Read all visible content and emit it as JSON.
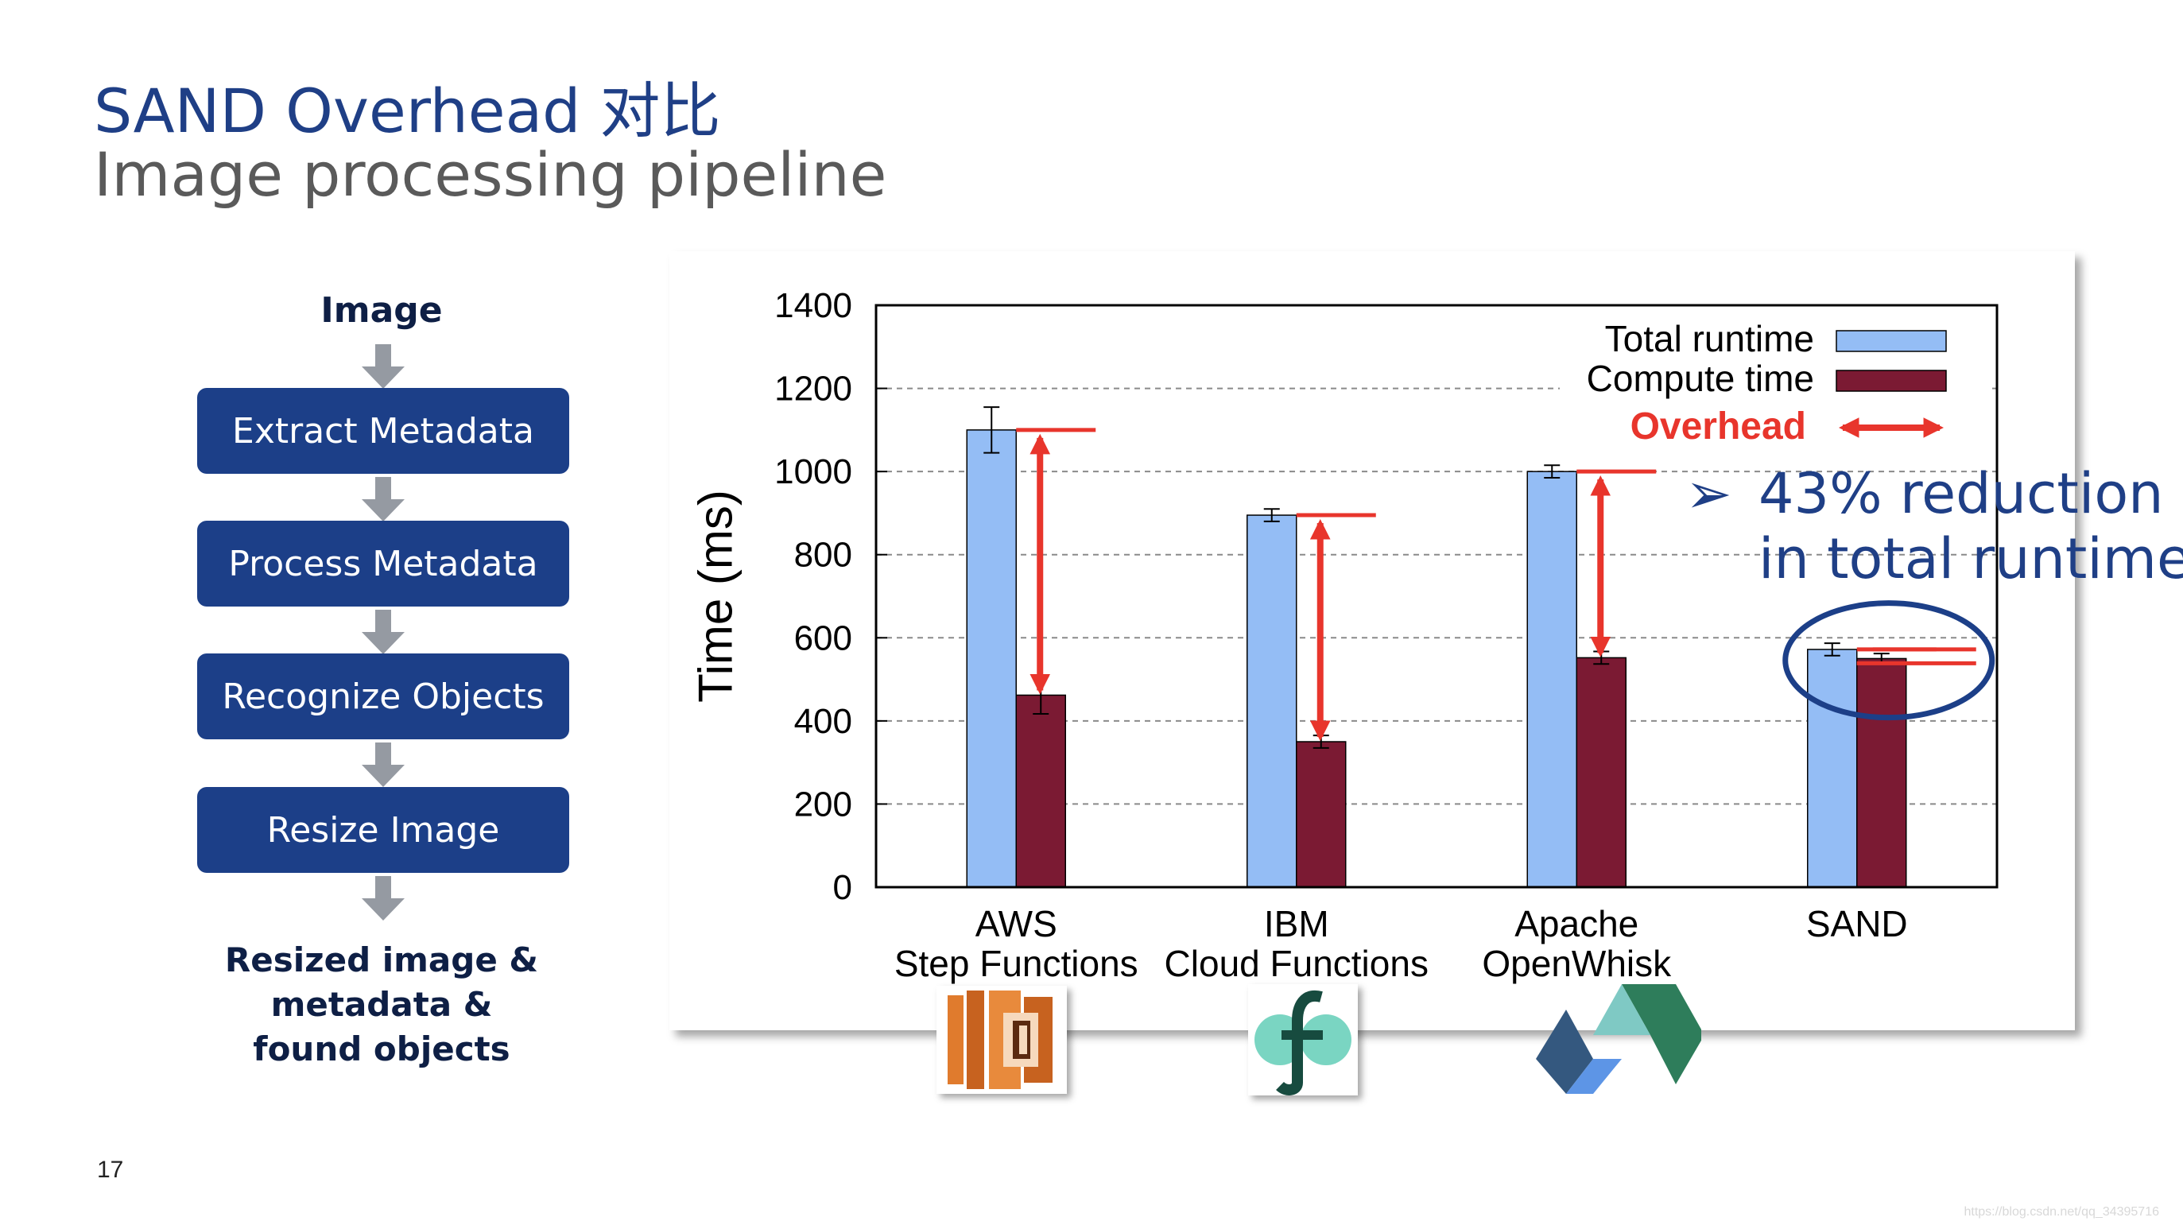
{
  "slide": {
    "title": "SAND Overhead 对比",
    "subtitle": "Image processing pipeline",
    "page_number": "17",
    "watermark": "https://blog.csdn.net/qq_34395716"
  },
  "pipeline": {
    "input": "Image",
    "steps": [
      "Extract Metadata",
      "Process Metadata",
      "Recognize Objects",
      "Resize Image"
    ],
    "output_lines": [
      "Resized image &",
      "metadata &",
      "found objects"
    ]
  },
  "annotation": {
    "bullet": "➢",
    "lines": [
      "43% reduction",
      "in total runtime"
    ]
  },
  "colors": {
    "title": "#1f3f86",
    "step_box": "#1c3f88",
    "total_bar": "#94bdf5",
    "compute_bar": "#7b1a33",
    "overhead": "#e8352c",
    "circle": "#1c3f88"
  },
  "icons": [
    "aws-step-functions-icon",
    "ibm-cloud-functions-icon",
    "apache-openwhisk-icon"
  ],
  "chart_data": {
    "type": "bar",
    "categories": [
      [
        "AWS",
        "Step Functions"
      ],
      [
        "IBM",
        "Cloud Functions"
      ],
      [
        "Apache",
        "OpenWhisk"
      ],
      [
        "SAND"
      ]
    ],
    "series": [
      {
        "name": "Total runtime",
        "values": [
          1100,
          895,
          1000,
          572
        ],
        "errors": [
          55,
          15,
          15,
          15
        ],
        "color": "#94bdf5"
      },
      {
        "name": "Compute time",
        "values": [
          462,
          350,
          552,
          550
        ],
        "errors": [
          45,
          15,
          15,
          12
        ],
        "color": "#7b1a33"
      }
    ],
    "overhead_label": "Overhead",
    "ylabel": "Time (ms)",
    "ylim": [
      0,
      1400
    ],
    "yticks": [
      0,
      200,
      400,
      600,
      800,
      1000,
      1200,
      1400
    ],
    "grid": true,
    "legend_position": "top-right"
  }
}
